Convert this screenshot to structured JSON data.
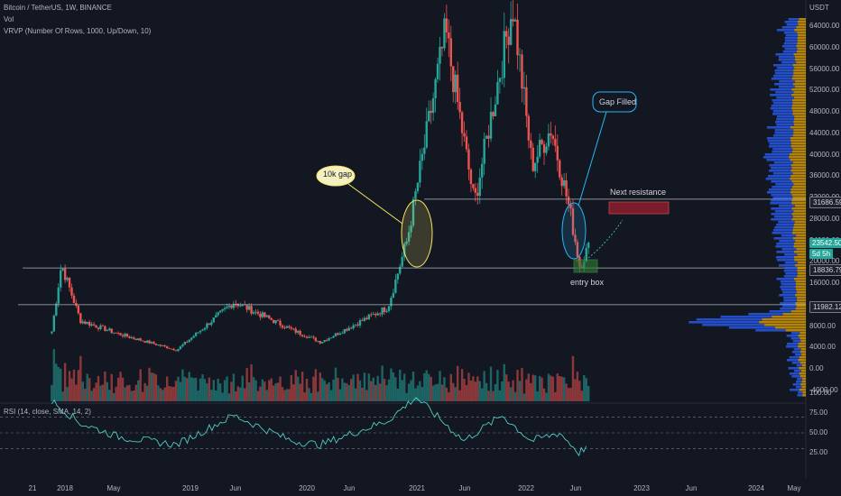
{
  "legend": {
    "line1": "Bitcoin / TetherUS, 1W, BINANCE",
    "line2": "Vol",
    "line3": "VRVP (Number Of Rows, 1000, Up/Down, 10)"
  },
  "rsi_legend": "RSI (14, close, SMA, 14, 2)",
  "price_axis": {
    "currency": "USDT",
    "ticks": [
      "64000.00",
      "60000.00",
      "56000.00",
      "52000.00",
      "48000.00",
      "44000.00",
      "40000.00",
      "36000.00",
      "32000.00",
      "28000.00",
      "24000.00",
      "20000.00",
      "16000.00",
      "12000.00",
      "8000.00",
      "4000.00",
      "0.00",
      "-4000.00"
    ]
  },
  "price_badges": {
    "resistance": "31686.59",
    "current": "23542.50",
    "countdown": "5d 5h",
    "support": "18836.79",
    "lower": "11982.12"
  },
  "rsi_axis": [
    "100.00",
    "75.00",
    "50.00",
    "25.00"
  ],
  "time_axis": [
    "21",
    "2018",
    "May",
    "2019",
    "Jun",
    "2020",
    "Jun",
    "2021",
    "Jun",
    "2022",
    "Jun",
    "2023",
    "Jun",
    "2024",
    "May"
  ],
  "annotations": {
    "gap": "10k gap",
    "gap_filled": "Gap Filled",
    "next_resistance": "Next resistance",
    "entry": "entry box"
  },
  "colors": {
    "background": "#131722",
    "up": "#26a69a",
    "down": "#ef5350",
    "rsi_line": "#4ecdc4",
    "gap_ellipse": "#f5e663",
    "fill_ellipse": "#29b6f6",
    "resistance_box": "#8b1e2e",
    "entry_box": "#2e7d32"
  },
  "chart_data": {
    "type": "candlestick",
    "interval": "1W",
    "symbol": "Bitcoin / TetherUS",
    "exchange": "BINANCE",
    "key_levels": [
      31686.59,
      18836.79,
      11982.12
    ],
    "anchors": [
      {
        "date": "2017-11",
        "price": 7000
      },
      {
        "date": "2017-12",
        "price": 19500
      },
      {
        "date": "2018-02",
        "price": 9000
      },
      {
        "date": "2018-06",
        "price": 6500
      },
      {
        "date": "2018-12",
        "price": 3500
      },
      {
        "date": "2019-06",
        "price": 12500
      },
      {
        "date": "2019-12",
        "price": 7300
      },
      {
        "date": "2020-03",
        "price": 5000
      },
      {
        "date": "2020-10",
        "price": 11500
      },
      {
        "date": "2020-12",
        "price": 24000
      },
      {
        "date": "2021-04",
        "price": 63000
      },
      {
        "date": "2021-07",
        "price": 31000
      },
      {
        "date": "2021-11",
        "price": 68000
      },
      {
        "date": "2022-01",
        "price": 38000
      },
      {
        "date": "2022-03",
        "price": 45000
      },
      {
        "date": "2022-05",
        "price": 29000
      },
      {
        "date": "2022-06",
        "price": 19000
      },
      {
        "date": "2022-07",
        "price": 23542.5
      }
    ],
    "rsi_range": [
      0,
      100
    ],
    "rsi_levels": [
      70,
      50,
      30
    ]
  }
}
